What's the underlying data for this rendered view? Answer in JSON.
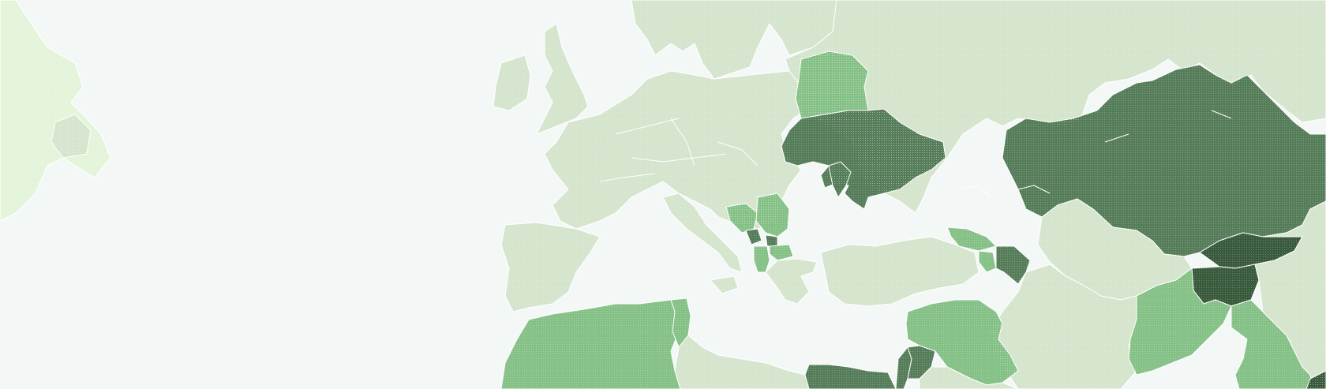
{
  "map": {
    "ocean_color": "#f3f8f7",
    "border_color": "#ffffff",
    "scale_colors": {
      "none": "#d5e4cc",
      "low": "#85c187",
      "mid": "#567d5a",
      "high": "#3a5a3d"
    },
    "regions": [
      {
        "id": "canada-east",
        "level": "none"
      },
      {
        "id": "british-isles",
        "level": "none"
      },
      {
        "id": "scandinavia",
        "level": "none"
      },
      {
        "id": "europe-west-central",
        "level": "none"
      },
      {
        "id": "iberia",
        "level": "none"
      },
      {
        "id": "italy",
        "level": "none"
      },
      {
        "id": "russia",
        "level": "none"
      },
      {
        "id": "belarus",
        "level": "low"
      },
      {
        "id": "ukraine",
        "level": "mid"
      },
      {
        "id": "moldova",
        "level": "mid"
      },
      {
        "id": "bosnia",
        "level": "low"
      },
      {
        "id": "serbia",
        "level": "low"
      },
      {
        "id": "montenegro",
        "level": "mid"
      },
      {
        "id": "kosovo",
        "level": "mid"
      },
      {
        "id": "north-macedonia",
        "level": "low"
      },
      {
        "id": "albania",
        "level": "low"
      },
      {
        "id": "greece",
        "level": "none"
      },
      {
        "id": "turkey",
        "level": "none"
      },
      {
        "id": "georgia",
        "level": "low"
      },
      {
        "id": "armenia",
        "level": "low"
      },
      {
        "id": "azerbaijan",
        "level": "mid"
      },
      {
        "id": "kazakhstan",
        "level": "mid"
      },
      {
        "id": "kyrgyzstan",
        "level": "high"
      },
      {
        "id": "tajikistan",
        "level": "high"
      },
      {
        "id": "uzbekistan-turkmenistan",
        "level": "none"
      },
      {
        "id": "iran",
        "level": "none"
      },
      {
        "id": "afghanistan",
        "level": "low"
      },
      {
        "id": "pakistan-india",
        "level": "low"
      },
      {
        "id": "north-africa-west",
        "level": "low"
      },
      {
        "id": "tunisia",
        "level": "low"
      },
      {
        "id": "libya",
        "level": "none"
      },
      {
        "id": "egypt",
        "level": "mid"
      },
      {
        "id": "syria-iraq",
        "level": "low"
      },
      {
        "id": "jordan",
        "level": "mid"
      },
      {
        "id": "levant",
        "level": "mid"
      },
      {
        "id": "arabia",
        "level": "none"
      },
      {
        "id": "china-west",
        "level": "none"
      },
      {
        "id": "nepal",
        "level": "high"
      }
    ]
  }
}
